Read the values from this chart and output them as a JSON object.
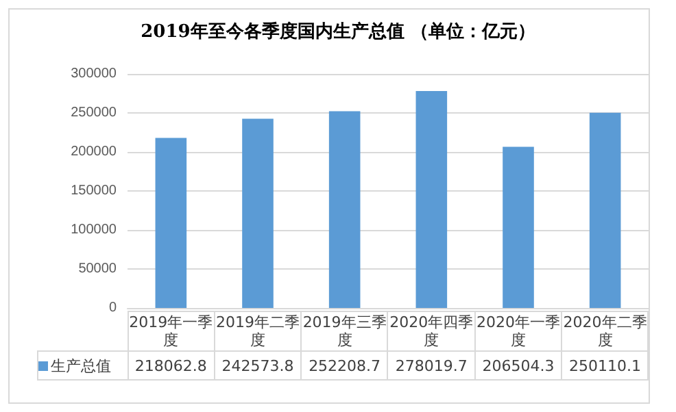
{
  "chart_data": {
    "type": "bar",
    "title": "2019年至今各季度国内生产总值 （单位：亿元）",
    "categories": [
      "2019年一季度",
      "2019年二季度",
      "2019年三季度",
      "2020年四季度",
      "2020年一季度",
      "2020年二季度"
    ],
    "series": [
      {
        "name": "生产总值",
        "color": "#5b9bd5",
        "values": [
          218062.8,
          242573.8,
          252208.7,
          278019.7,
          206504.3,
          250110.1
        ]
      }
    ],
    "ylim": [
      0,
      300000
    ],
    "yticks": [
      0,
      50000,
      100000,
      150000,
      200000,
      250000,
      300000
    ],
    "grid": "y",
    "legend": "bottom",
    "data_labels": true
  }
}
